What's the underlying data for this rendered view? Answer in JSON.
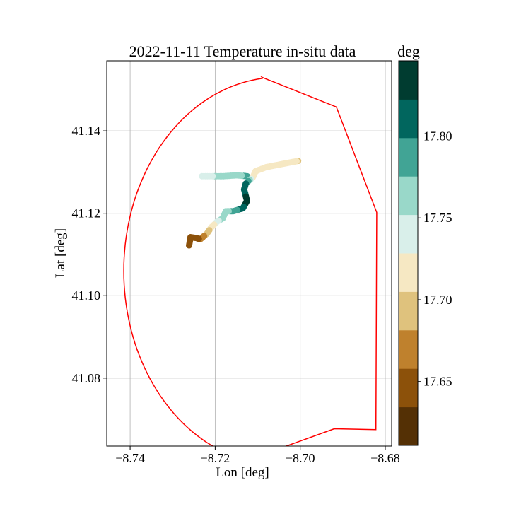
{
  "chart_data": {
    "type": "scatter",
    "title": "2022-11-11 Temperature in-situ data",
    "xlabel": "Lon [deg]",
    "ylabel": "Lat [deg]",
    "xlim": [
      -8.7455,
      -8.6785
    ],
    "ylim": [
      41.0635,
      41.157
    ],
    "grid": true,
    "x_ticks": [
      -8.74,
      -8.72,
      -8.7,
      -8.68
    ],
    "x_tick_labels": [
      "−8.74",
      "−8.72",
      "−8.70",
      "−8.68"
    ],
    "y_ticks": [
      41.08,
      41.1,
      41.12,
      41.14
    ],
    "y_tick_labels": [
      "41.08",
      "41.10",
      "41.12",
      "41.14"
    ],
    "boundary": {
      "color": "#ff0000",
      "arc": {
        "center_lon": -8.705,
        "center_lat": 41.106,
        "lon_radius": 0.0365,
        "lat_radius": 0.047,
        "start_deg": 96,
        "end_deg": 258
      },
      "points": [
        {
          "lon": -8.709,
          "lat": 41.153
        },
        {
          "lon": -8.6915,
          "lat": 41.1458
        },
        {
          "lon": -8.682,
          "lat": 41.1202
        },
        {
          "lon": -8.6822,
          "lat": 41.0675
        },
        {
          "lon": -8.692,
          "lat": 41.0677
        }
      ]
    },
    "track_waypoints": [
      {
        "lon": -8.7005,
        "lat": 41.1327,
        "value": 17.705
      },
      {
        "lon": -8.708,
        "lat": 41.1312,
        "value": 17.71
      },
      {
        "lon": -8.7105,
        "lat": 41.1302,
        "value": 17.722
      },
      {
        "lon": -8.7112,
        "lat": 41.1286,
        "value": 17.728
      },
      {
        "lon": -8.7122,
        "lat": 41.1278,
        "value": 17.785
      },
      {
        "lon": -8.7128,
        "lat": 41.1272,
        "value": 17.8
      },
      {
        "lon": -8.7132,
        "lat": 41.1258,
        "value": 17.815
      },
      {
        "lon": -8.7125,
        "lat": 41.123,
        "value": 17.83
      },
      {
        "lon": -8.7135,
        "lat": 41.1212,
        "value": 17.82
      },
      {
        "lon": -8.7158,
        "lat": 41.1205,
        "value": 17.78
      },
      {
        "lon": -8.7175,
        "lat": 41.1205,
        "value": 17.77
      },
      {
        "lon": -8.7182,
        "lat": 41.1188,
        "value": 17.76
      },
      {
        "lon": -8.7195,
        "lat": 41.118,
        "value": 17.745
      },
      {
        "lon": -8.721,
        "lat": 41.1165,
        "value": 17.71
      },
      {
        "lon": -8.722,
        "lat": 41.115,
        "value": 17.69
      },
      {
        "lon": -8.7235,
        "lat": 41.1137,
        "value": 17.66
      },
      {
        "lon": -8.7245,
        "lat": 41.114,
        "value": 17.65
      },
      {
        "lon": -8.7258,
        "lat": 41.1142,
        "value": 17.645
      },
      {
        "lon": -8.726,
        "lat": 41.113,
        "value": 17.64
      },
      {
        "lon": -8.7262,
        "lat": 41.1118,
        "value": 17.635
      }
    ],
    "branch_waypoints": [
      {
        "lon": -8.7125,
        "lat": 41.129,
        "value": 17.78
      },
      {
        "lon": -8.715,
        "lat": 41.1292,
        "value": 17.77
      },
      {
        "lon": -8.718,
        "lat": 41.129,
        "value": 17.76
      },
      {
        "lon": -8.721,
        "lat": 41.129,
        "value": 17.75
      },
      {
        "lon": -8.7235,
        "lat": 41.129,
        "value": 17.745
      }
    ],
    "colorbar": {
      "label": "deg",
      "vmin": 17.611,
      "vmax": 17.846,
      "ticks": [
        17.65,
        17.7,
        17.75,
        17.8
      ],
      "tick_labels": [
        "17.65",
        "17.70",
        "17.75",
        "17.80"
      ],
      "colors": [
        "#543005",
        "#8c510a",
        "#bf812d",
        "#dfc27d",
        "#f6e8c3",
        "#d9efea",
        "#99d8c9",
        "#41a495",
        "#01665e",
        "#003c30"
      ]
    }
  }
}
